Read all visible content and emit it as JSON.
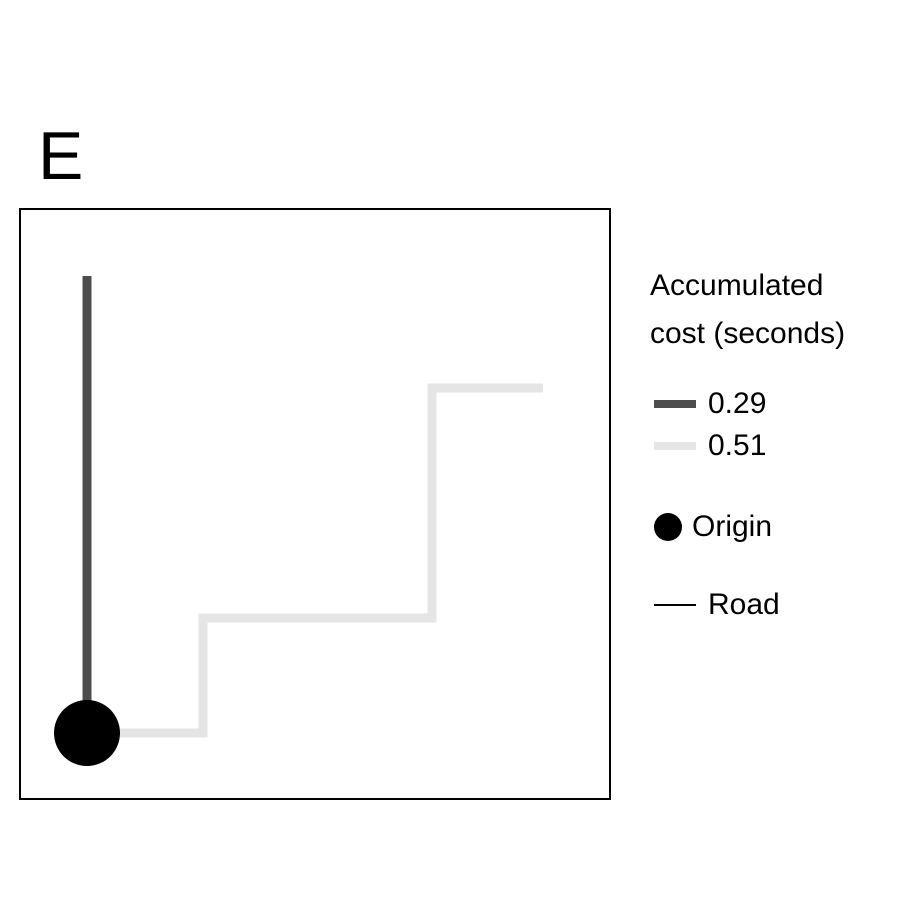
{
  "panel": {
    "letter": "E"
  },
  "legend": {
    "title_line1": "Accumulated",
    "title_line2": "cost (seconds)",
    "cost_items": [
      {
        "label": "0.29",
        "color": "#4d4d4d"
      },
      {
        "label": "0.51",
        "color": "#e5e5e5"
      }
    ],
    "origin_label": "Origin",
    "road_label": "Road",
    "origin_color": "#000000",
    "road_color": "#000000"
  }
}
